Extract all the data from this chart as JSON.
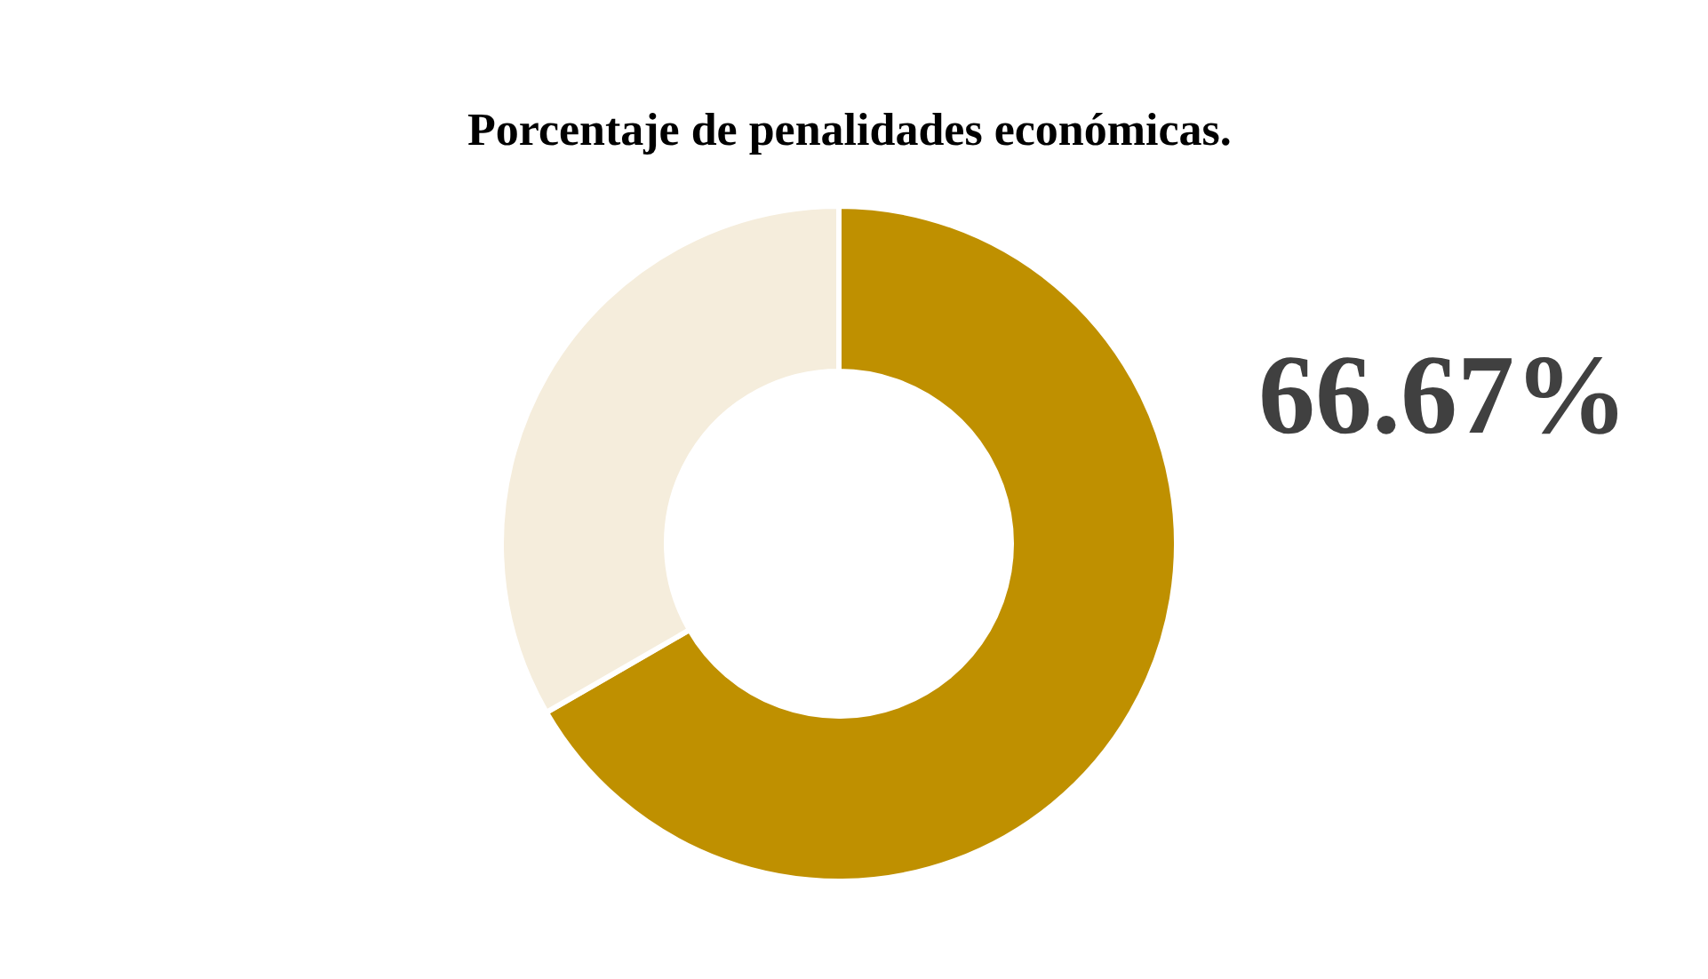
{
  "chart_data": {
    "type": "donut",
    "title": "Porcentaje de penalidades económicas.",
    "categories": [
      null,
      null
    ],
    "values": [
      66.67,
      33.33
    ],
    "colors": [
      "#bf9000",
      "#f5eddc"
    ],
    "annotations": [
      "66.67%"
    ]
  }
}
